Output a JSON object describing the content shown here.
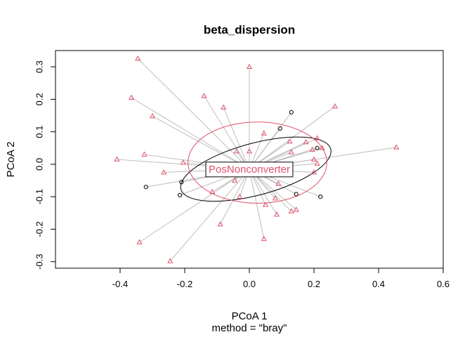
{
  "chart_data": {
    "type": "scatter",
    "title": "beta_dispersion",
    "xlabel": "PCoA 1",
    "sublabel": "method = \"bray\"",
    "ylabel": "PCoA 2",
    "xlim": [
      -0.6,
      0.6
    ],
    "ylim": [
      -0.32,
      0.35
    ],
    "xticks": [
      -0.4,
      -0.2,
      0.0,
      0.2,
      0.4,
      0.6
    ],
    "xtick_labels": [
      "-0.4",
      "-0.2",
      "0.0",
      "0.2",
      "0.4",
      "0.6"
    ],
    "yticks": [
      -0.3,
      -0.2,
      -0.1,
      0.0,
      0.1,
      0.2,
      0.3
    ],
    "ytick_labels": [
      "-0.3",
      "-0.2",
      "-0.1",
      "0.0",
      "0.1",
      "0.2",
      "0.3"
    ],
    "segment_color": "#BEBEBE",
    "centroid": {
      "label": "PosNonconverter",
      "x": 0.0,
      "y": -0.015,
      "color": "#DF536B"
    },
    "groups": [
      {
        "marker": "circle",
        "color": "#000000",
        "ellipse": {
          "cx": 0.02,
          "cy": -0.015,
          "rx": 0.24,
          "ry": 0.08,
          "angle_deg": 15
        },
        "points": [
          [
            0.13,
            0.16
          ],
          [
            0.095,
            0.11
          ],
          [
            0.21,
            0.05
          ],
          [
            0.145,
            -0.092
          ],
          [
            0.22,
            -0.1
          ],
          [
            -0.21,
            -0.055
          ],
          [
            -0.32,
            -0.07
          ],
          [
            -0.215,
            -0.095
          ]
        ]
      },
      {
        "marker": "triangle",
        "color": "#DF536B",
        "ellipse": {
          "cx": 0.025,
          "cy": 0.005,
          "rx": 0.215,
          "ry": 0.125,
          "angle_deg": 0
        },
        "points": [
          [
            -0.345,
            0.325
          ],
          [
            -0.365,
            0.205
          ],
          [
            -0.14,
            0.21
          ],
          [
            -0.3,
            0.148
          ],
          [
            0.0,
            0.3
          ],
          [
            -0.08,
            0.175
          ],
          [
            0.265,
            0.178
          ],
          [
            0.455,
            0.052
          ],
          [
            0.21,
            0.08
          ],
          [
            0.125,
            0.07
          ],
          [
            0.045,
            0.095
          ],
          [
            0.175,
            0.068
          ],
          [
            0.225,
            0.05
          ],
          [
            0.195,
            0.045
          ],
          [
            0.13,
            0.037
          ],
          [
            -0.04,
            0.04
          ],
          [
            0.0,
            0.04
          ],
          [
            -0.325,
            0.03
          ],
          [
            -0.41,
            0.015
          ],
          [
            -0.205,
            0.005
          ],
          [
            0.2,
            0.015
          ],
          [
            0.21,
            0.002
          ],
          [
            -0.265,
            -0.025
          ],
          [
            0.2,
            -0.025
          ],
          [
            -0.045,
            -0.05
          ],
          [
            -0.115,
            -0.085
          ],
          [
            0.09,
            -0.06
          ],
          [
            -0.03,
            -0.1
          ],
          [
            0.08,
            -0.105
          ],
          [
            0.05,
            -0.125
          ],
          [
            0.145,
            -0.14
          ],
          [
            0.13,
            -0.145
          ],
          [
            0.085,
            -0.155
          ],
          [
            -0.09,
            -0.185
          ],
          [
            0.045,
            -0.23
          ],
          [
            -0.34,
            -0.24
          ],
          [
            -0.245,
            -0.298
          ]
        ]
      }
    ]
  }
}
